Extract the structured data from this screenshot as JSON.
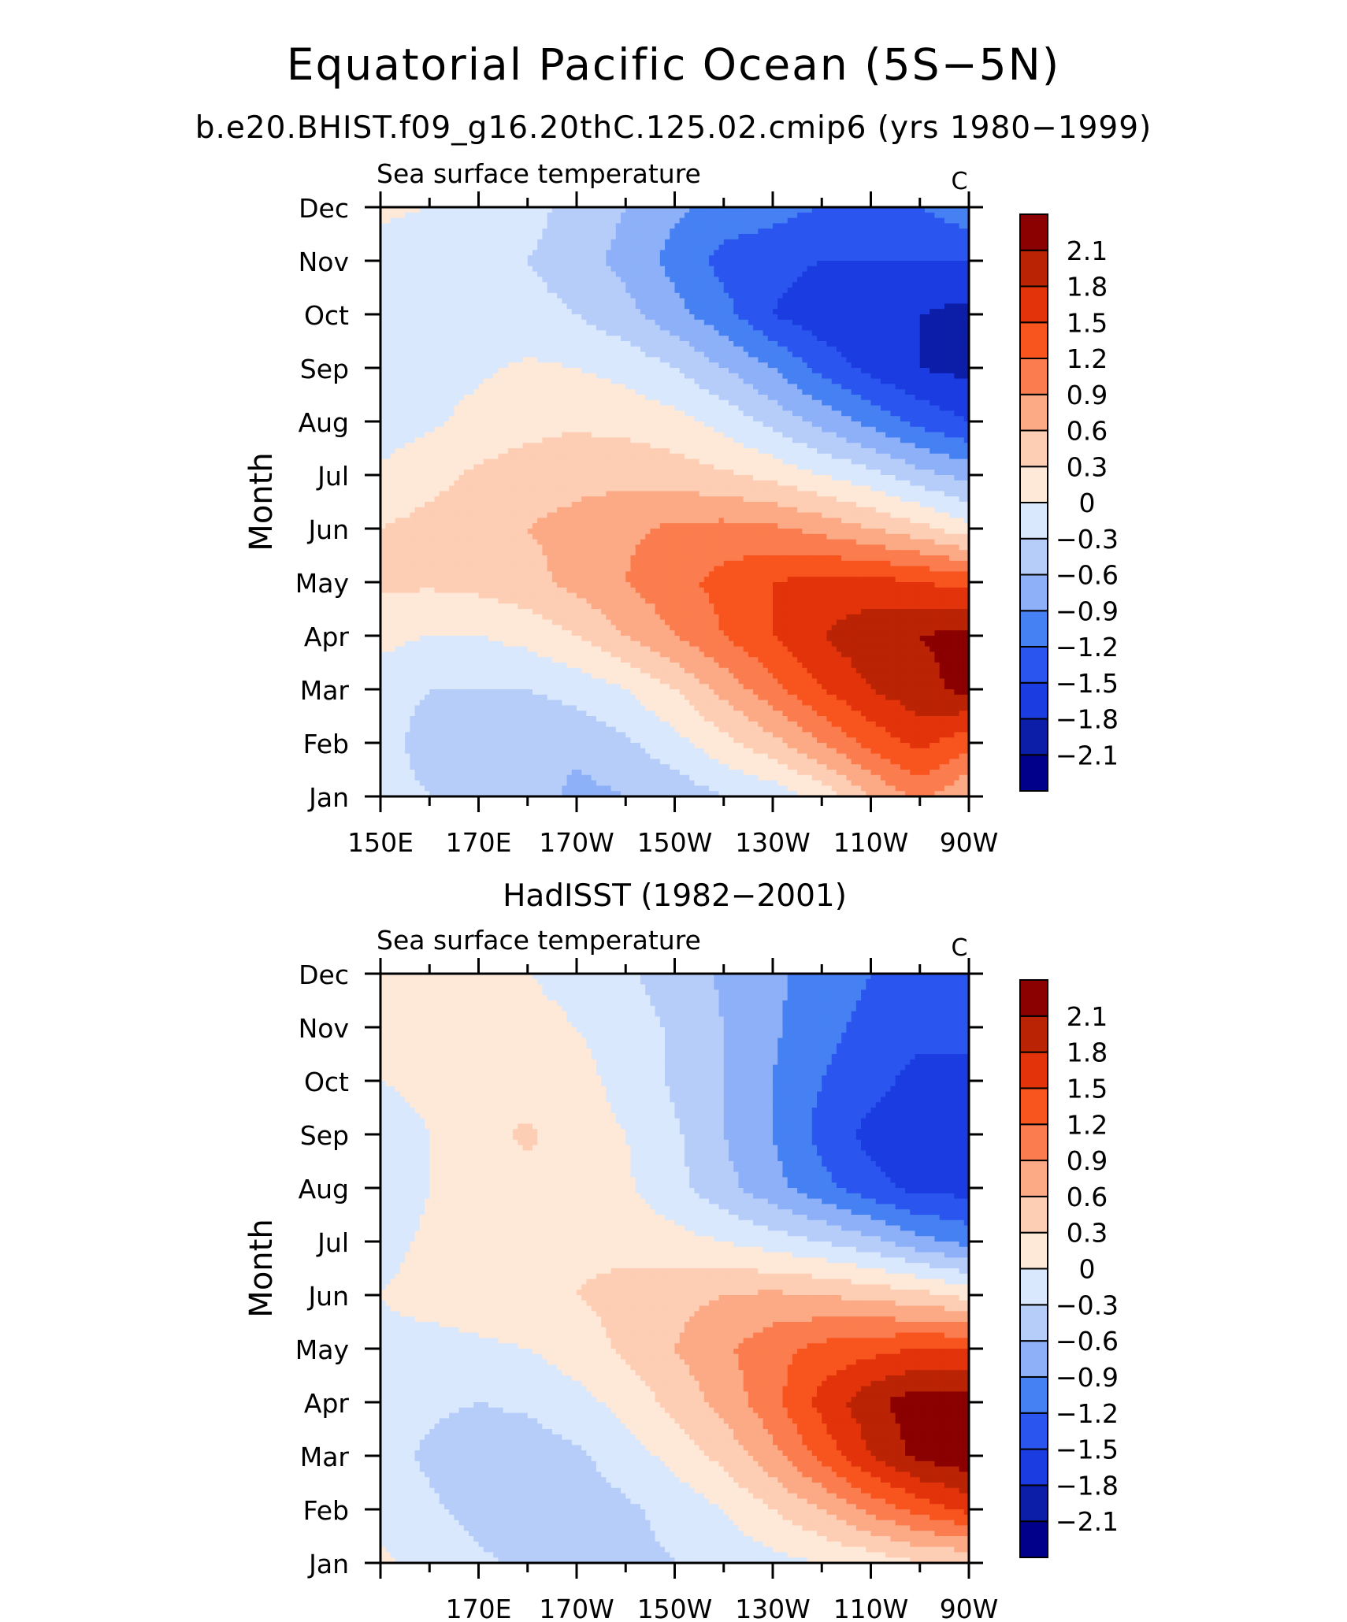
{
  "title": "Equatorial Pacific Ocean (5S−5N)",
  "subtitle": "b.e20.BHIST.f09_g16.20thC.125.02.cmip6 (yrs 1980−1999)",
  "colors": [
    "#00008b",
    "#0c1da8",
    "#1a3ce0",
    "#2a56ef",
    "#4681f3",
    "#8db0f8",
    "#b6cdfa",
    "#d9e8fc",
    "#fee9d8",
    "#fdcdb4",
    "#fcaa85",
    "#fb7d4f",
    "#f8541e",
    "#e3330b",
    "#bb2305",
    "#8b0000"
  ],
  "chart_data": [
    {
      "type": "heatmap",
      "panel_title": "",
      "variable_label": "Sea surface temperature",
      "unit_label": "C",
      "ylabel": "Month",
      "x_ticks": [
        "150E",
        "170E",
        "170W",
        "150W",
        "130W",
        "110W",
        "90W"
      ],
      "x_tick_values": [
        150,
        170,
        190,
        210,
        230,
        250,
        270
      ],
      "y_ticks": [
        "Jan",
        "Feb",
        "Mar",
        "Apr",
        "May",
        "Jun",
        "Jul",
        "Aug",
        "Sep",
        "Oct",
        "Nov",
        "Dec"
      ],
      "colorbar_labels": [
        "2.1",
        "1.8",
        "1.5",
        "1.2",
        "0.9",
        "0.6",
        "0.3",
        "0",
        "−0.3",
        "−0.6",
        "−0.9",
        "−1.2",
        "−1.5",
        "−1.8",
        "−2.1"
      ],
      "xlim": [
        150,
        270
      ],
      "ylim": [
        1,
        12
      ],
      "lon": [
        150,
        160,
        170,
        180,
        190,
        200,
        210,
        220,
        230,
        240,
        250,
        260,
        270
      ],
      "values": [
        [
          -0.2,
          -0.3,
          -0.35,
          -0.4,
          -0.7,
          -0.6,
          -0.5,
          -0.3,
          -0.2,
          0.1,
          0.6,
          1.0,
          0.6
        ],
        [
          -0.2,
          -0.4,
          -0.5,
          -0.5,
          -0.5,
          -0.35,
          -0.1,
          0.2,
          0.5,
          0.9,
          1.3,
          1.6,
          1.3
        ],
        [
          -0.2,
          -0.3,
          -0.3,
          -0.3,
          -0.2,
          0.0,
          0.3,
          0.7,
          1.1,
          1.5,
          1.8,
          2.0,
          2.2
        ],
        [
          0.1,
          0.0,
          0.0,
          0.1,
          0.3,
          0.6,
          0.9,
          1.2,
          1.5,
          1.8,
          2.0,
          2.1,
          2.2
        ],
        [
          0.35,
          0.35,
          0.4,
          0.5,
          0.7,
          0.9,
          1.1,
          1.3,
          1.5,
          1.6,
          1.6,
          1.5,
          1.4
        ],
        [
          0.3,
          0.4,
          0.5,
          0.6,
          0.7,
          0.85,
          0.95,
          1.0,
          0.95,
          0.8,
          0.6,
          0.4,
          0.1
        ],
        [
          0.05,
          0.2,
          0.35,
          0.45,
          0.5,
          0.5,
          0.45,
          0.35,
          0.2,
          0.0,
          -0.2,
          -0.5,
          -0.7
        ],
        [
          -0.15,
          -0.05,
          0.1,
          0.2,
          0.25,
          0.2,
          0.1,
          -0.1,
          -0.4,
          -0.7,
          -1.0,
          -1.3,
          -1.5
        ],
        [
          -0.2,
          -0.15,
          -0.05,
          0.05,
          0.0,
          -0.1,
          -0.3,
          -0.6,
          -0.9,
          -1.3,
          -1.6,
          -1.8,
          -1.9
        ],
        [
          -0.2,
          -0.2,
          -0.2,
          -0.2,
          -0.3,
          -0.5,
          -0.8,
          -1.1,
          -1.5,
          -1.7,
          -1.8,
          -1.8,
          -1.9
        ],
        [
          -0.1,
          -0.2,
          -0.25,
          -0.3,
          -0.45,
          -0.7,
          -1.0,
          -1.3,
          -1.4,
          -1.5,
          -1.5,
          -1.5,
          -1.5
        ],
        [
          0.05,
          0.0,
          -0.1,
          -0.2,
          -0.4,
          -0.6,
          -0.85,
          -1.0,
          -1.1,
          -1.2,
          -1.25,
          -1.2,
          -1.0
        ]
      ]
    },
    {
      "type": "heatmap",
      "panel_title": "HadISST (1982−2001)",
      "variable_label": "Sea surface temperature",
      "unit_label": "C",
      "ylabel": "Month",
      "x_ticks": [
        "170E",
        "170W",
        "150W",
        "130W",
        "110W",
        "90W"
      ],
      "x_tick_values": [
        170,
        190,
        210,
        230,
        250,
        270
      ],
      "y_ticks": [
        "Jan",
        "Feb",
        "Mar",
        "Apr",
        "May",
        "Jun",
        "Jul",
        "Aug",
        "Sep",
        "Oct",
        "Nov",
        "Dec"
      ],
      "colorbar_labels": [
        "2.1",
        "1.8",
        "1.5",
        "1.2",
        "0.9",
        "0.6",
        "0.3",
        "0",
        "−0.3",
        "−0.6",
        "−0.9",
        "−1.2",
        "−1.5",
        "−1.8",
        "−2.1"
      ],
      "xlim": [
        150,
        270
      ],
      "ylim": [
        1,
        12
      ],
      "lon": [
        150,
        160,
        170,
        180,
        190,
        200,
        210,
        220,
        230,
        240,
        250,
        260,
        270
      ],
      "values": [
        [
          0.05,
          -0.1,
          -0.25,
          -0.35,
          -0.4,
          -0.4,
          -0.3,
          -0.2,
          -0.1,
          0.0,
          0.1,
          0.3,
          0.3
        ],
        [
          -0.1,
          -0.25,
          -0.4,
          -0.45,
          -0.45,
          -0.35,
          -0.2,
          0.0,
          0.3,
          0.6,
          1.0,
          1.3,
          1.6
        ],
        [
          -0.2,
          -0.35,
          -0.45,
          -0.45,
          -0.35,
          -0.15,
          0.1,
          0.4,
          0.8,
          1.3,
          1.8,
          2.2,
          2.3
        ],
        [
          -0.15,
          -0.25,
          -0.3,
          -0.25,
          -0.1,
          0.1,
          0.4,
          0.7,
          1.1,
          1.6,
          2.0,
          2.3,
          2.3
        ],
        [
          -0.05,
          -0.1,
          -0.05,
          0.0,
          0.15,
          0.35,
          0.6,
          0.85,
          1.1,
          1.3,
          1.4,
          1.5,
          1.5
        ],
        [
          0.0,
          0.1,
          0.15,
          0.2,
          0.3,
          0.4,
          0.5,
          0.6,
          0.65,
          0.6,
          0.5,
          0.4,
          0.2
        ],
        [
          -0.1,
          0.05,
          0.15,
          0.2,
          0.25,
          0.2,
          0.1,
          0.0,
          -0.15,
          -0.3,
          -0.5,
          -0.8,
          -1.0
        ],
        [
          -0.2,
          0.0,
          0.15,
          0.2,
          0.15,
          0.05,
          -0.2,
          -0.5,
          -0.8,
          -1.1,
          -1.4,
          -1.6,
          -1.6
        ],
        [
          -0.2,
          0.0,
          0.2,
          0.35,
          0.15,
          0.0,
          -0.25,
          -0.6,
          -0.9,
          -1.3,
          -1.6,
          -1.7,
          -1.7
        ],
        [
          0.0,
          0.1,
          0.15,
          0.15,
          0.1,
          -0.1,
          -0.35,
          -0.6,
          -0.9,
          -1.2,
          -1.4,
          -1.6,
          -1.6
        ],
        [
          0.1,
          0.15,
          0.15,
          0.1,
          0.0,
          -0.15,
          -0.35,
          -0.6,
          -0.85,
          -1.1,
          -1.3,
          -1.4,
          -1.4
        ],
        [
          0.1,
          0.1,
          0.05,
          0.0,
          -0.1,
          -0.25,
          -0.45,
          -0.65,
          -0.85,
          -1.0,
          -1.2,
          -1.3,
          -1.3
        ]
      ]
    }
  ]
}
